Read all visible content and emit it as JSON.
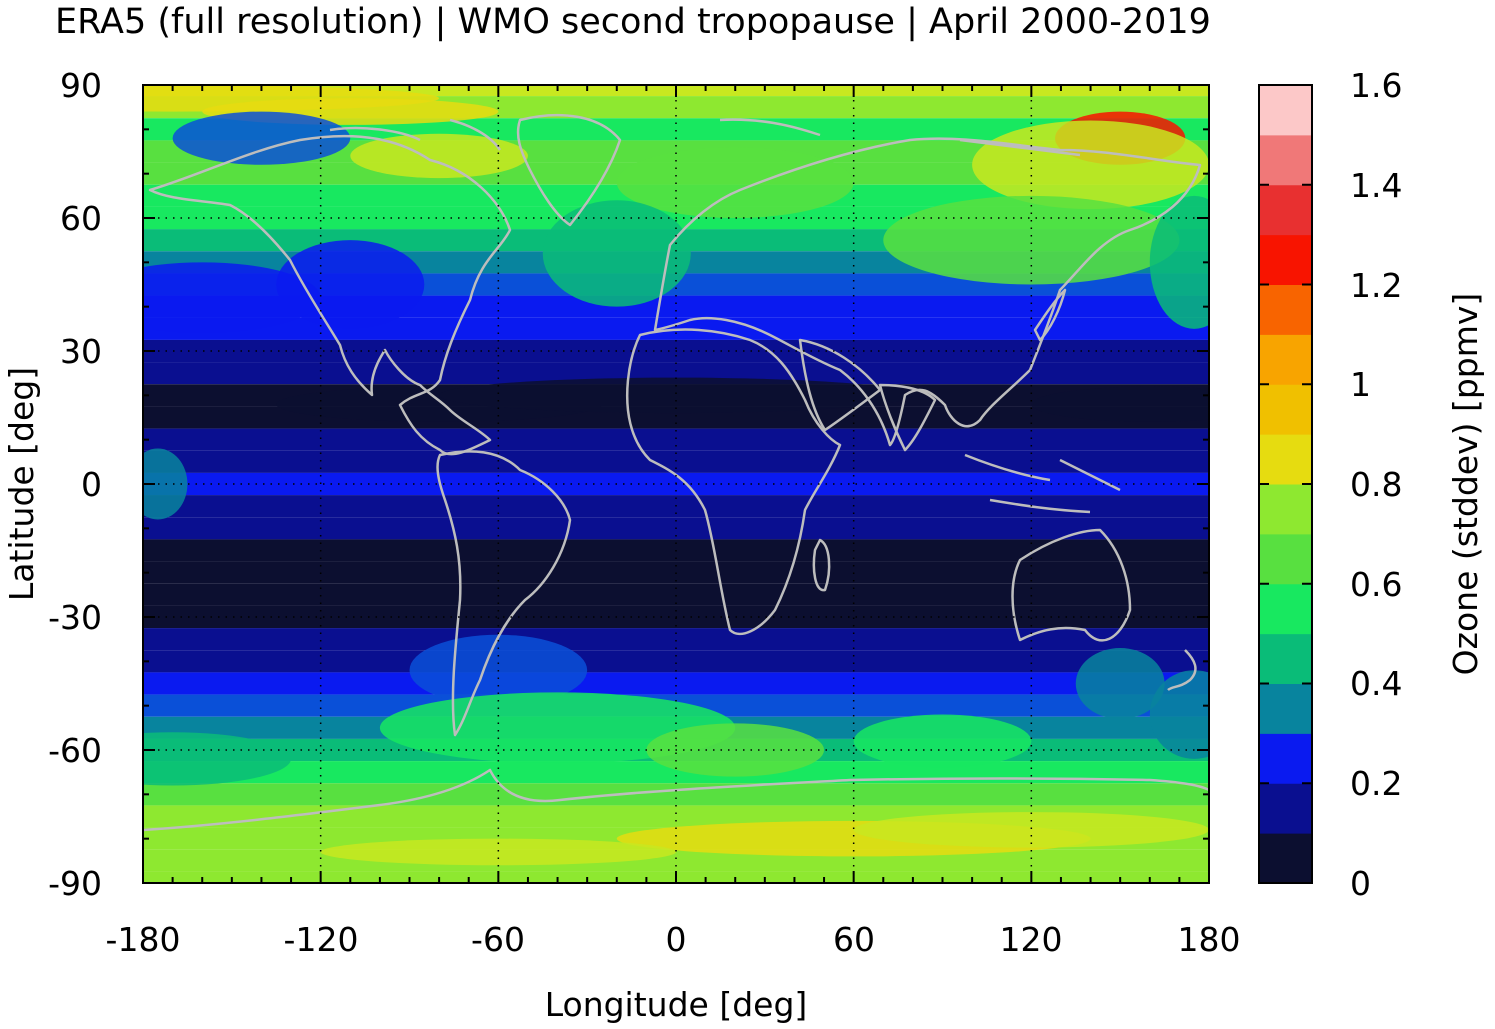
{
  "title": "ERA5 (full resolution) | WMO second tropopause | April 2000-2019",
  "chart_data": {
    "type": "heatmap",
    "title": "ERA5 (full resolution) | WMO second tropopause | April 2000-2019",
    "xlabel": "Longitude [deg]",
    "ylabel": "Latitude [deg]",
    "xlim": [
      -180,
      180
    ],
    "ylim": [
      -90,
      90
    ],
    "xticks": [
      "-180",
      "-120",
      "-60",
      "0",
      "60",
      "120",
      "180"
    ],
    "yticks": [
      "90",
      "60",
      "30",
      "0",
      "-30",
      "-60",
      "-90"
    ],
    "grid": "dotted",
    "coastlines": true,
    "colorbar": {
      "label": "Ozone (stddev) [ppmv]",
      "ticks": [
        "0",
        "0.2",
        "0.4",
        "0.6",
        "0.8",
        "1",
        "1.2",
        "1.4",
        "1.6"
      ],
      "range": [
        0,
        1.6
      ],
      "step": 0.1,
      "colors": [
        "#0c0f30",
        "#0a0f90",
        "#0a1af0",
        "#0a50d8",
        "#08849e",
        "#0abc78",
        "#18e860",
        "#58e040",
        "#8ee830",
        "#c8e820",
        "#e6dc10",
        "#f0c000",
        "#f8a400",
        "#f86400",
        "#f81400",
        "#f82020",
        "#e83030",
        "#f07878",
        "#fcc8c8"
      ]
    },
    "zonal_mean_profile": {
      "latitude": [
        90,
        85,
        80,
        75,
        70,
        65,
        60,
        55,
        50,
        45,
        40,
        35,
        30,
        25,
        20,
        15,
        10,
        5,
        0,
        -5,
        -10,
        -15,
        -20,
        -25,
        -30,
        -35,
        -40,
        -45,
        -50,
        -55,
        -60,
        -65,
        -70,
        -75,
        -80,
        -85,
        -90
      ],
      "value": [
        0.95,
        0.8,
        0.7,
        0.72,
        0.72,
        0.7,
        0.65,
        0.55,
        0.45,
        0.35,
        0.25,
        0.2,
        0.15,
        0.1,
        0.08,
        0.05,
        0.1,
        0.18,
        0.2,
        0.18,
        0.1,
        0.05,
        0.05,
        0.05,
        0.05,
        0.1,
        0.15,
        0.22,
        0.35,
        0.48,
        0.58,
        0.68,
        0.75,
        0.8,
        0.85,
        0.8,
        0.8
      ]
    }
  }
}
